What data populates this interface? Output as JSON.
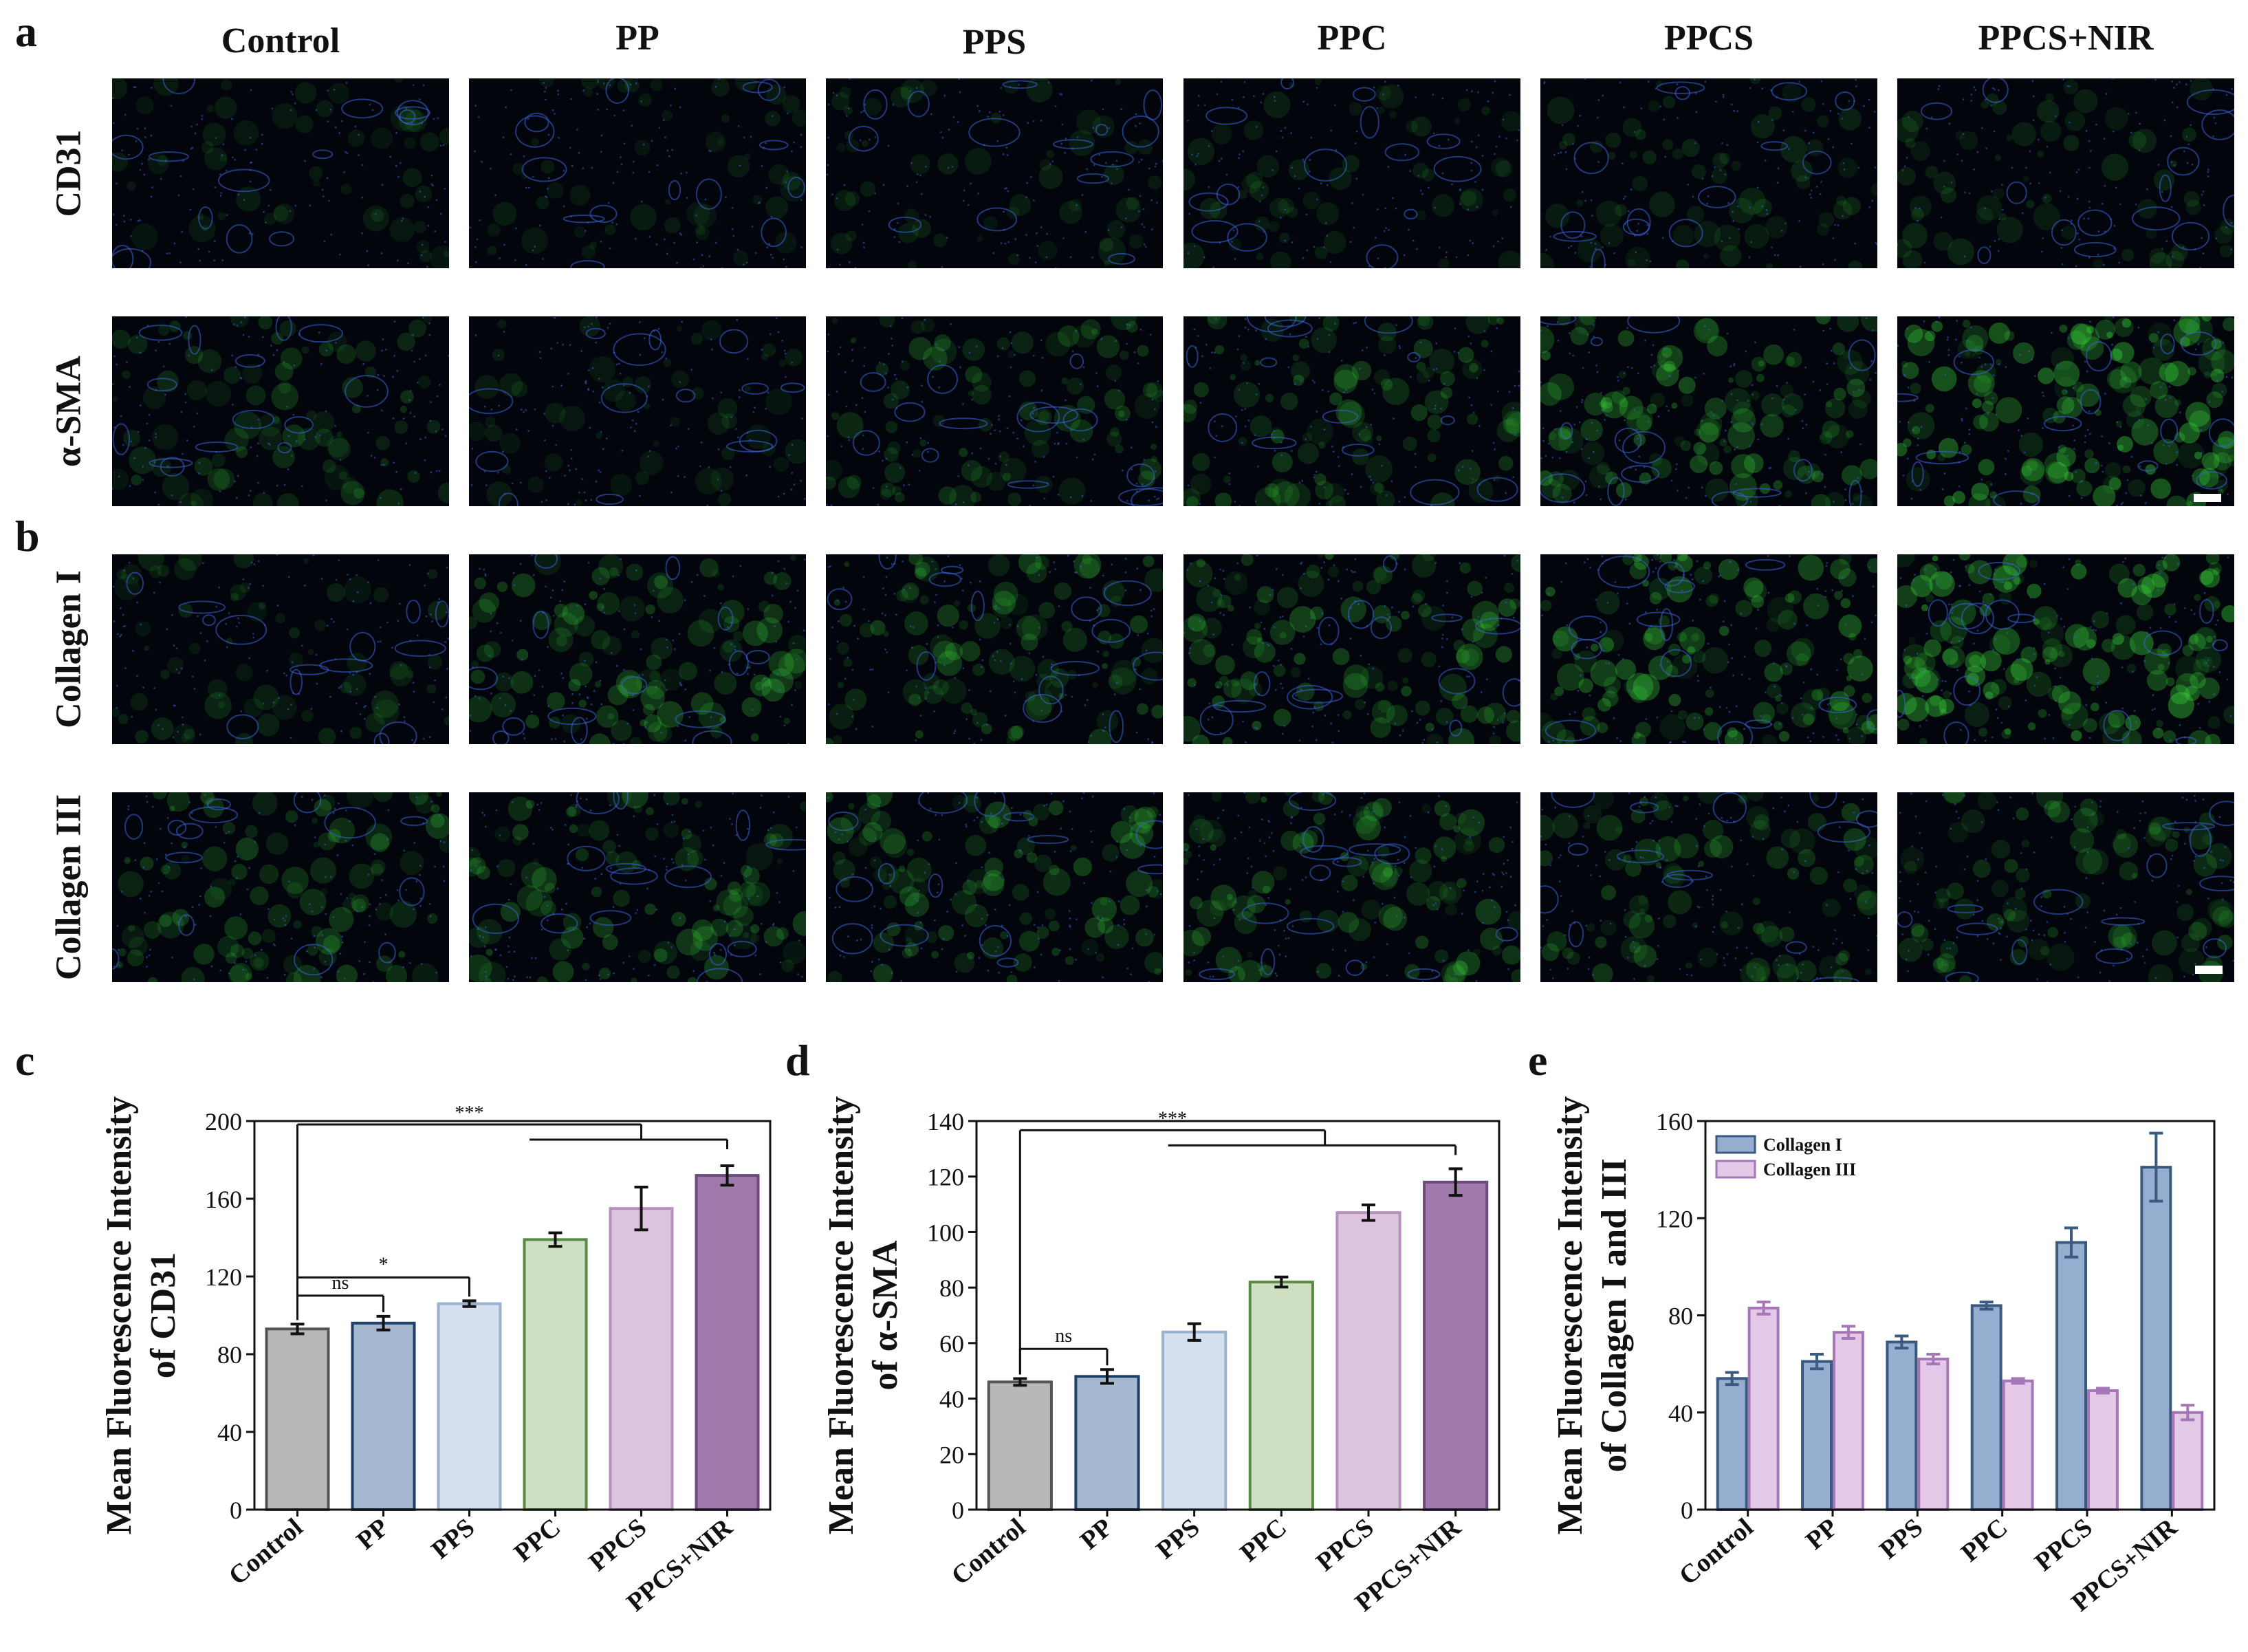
{
  "figure": {
    "panel_letters": [
      "a",
      "b",
      "c",
      "d",
      "e"
    ],
    "column_headers": [
      "Control",
      "PP",
      "PPS",
      "PPC",
      "PPCS",
      "PPCS+NIR"
    ],
    "row_labels": [
      "CD31",
      "α-SMA",
      "Collagen I",
      "Collagen III"
    ]
  },
  "colors": {
    "Control": "#b8b8b8",
    "PP": "#a6b8cf",
    "PPS": "#d4e0ee",
    "PPC": "#cfe0c2",
    "PPCS": "#dcc4de",
    "PPCS+NIR": "#a07aac",
    "collagen_i": "#95aed0",
    "collagen_iii": "#e4c8e8",
    "nuclei_stain": "#3a62d8",
    "marker_stain": "#39d43a"
  },
  "chart_data": [
    {
      "type": "bar",
      "panel": "c",
      "categories": [
        "Control",
        "PP",
        "PPS",
        "PPC",
        "PPCS",
        "PPCS+NIR"
      ],
      "values": [
        93,
        96,
        106,
        139,
        155,
        172
      ],
      "errors": [
        2.5,
        3.5,
        1.5,
        3.5,
        11,
        5
      ],
      "ylabel_line1": "Mean Fluorescence Intensity",
      "ylabel_line2": "of CD31",
      "ylim": [
        0,
        200
      ],
      "yticks": [
        0,
        40,
        80,
        120,
        160,
        200
      ],
      "annotations": [
        {
          "text": "ns",
          "from": "Control",
          "to": [
            "PP"
          ]
        },
        {
          "text": "*",
          "from": "Control",
          "to": [
            "PPS"
          ]
        },
        {
          "text": "***",
          "from": "Control",
          "to": [
            "PPC",
            "PPCS",
            "PPCS+NIR"
          ]
        }
      ]
    },
    {
      "type": "bar",
      "panel": "d",
      "categories": [
        "Control",
        "PP",
        "PPS",
        "PPC",
        "PPCS",
        "PPCS+NIR"
      ],
      "values": [
        46,
        48,
        64,
        82,
        107,
        118
      ],
      "errors": [
        1.2,
        2.5,
        3,
        1.8,
        2.8,
        4.8
      ],
      "ylabel_line1": "Mean Fluorescence Intensity",
      "ylabel_line2": "of α-SMA",
      "ylim": [
        0,
        140
      ],
      "yticks": [
        0,
        20,
        40,
        60,
        80,
        100,
        120,
        140
      ],
      "annotations": [
        {
          "text": "ns",
          "from": "Control",
          "to": [
            "PP"
          ]
        },
        {
          "text": "***",
          "from": "Control",
          "to": [
            "PPS",
            "PPC",
            "PPCS",
            "PPCS+NIR"
          ]
        }
      ]
    },
    {
      "type": "bar",
      "panel": "e",
      "categories": [
        "Control",
        "PP",
        "PPS",
        "PPC",
        "PPCS",
        "PPCS+NIR"
      ],
      "series": [
        {
          "name": "Collagen I",
          "values": [
            54,
            61,
            69,
            84,
            110,
            141
          ],
          "errors": [
            2.5,
            3,
            2.5,
            1.5,
            6,
            14
          ]
        },
        {
          "name": "Collagen III",
          "values": [
            83,
            73,
            62,
            53,
            49,
            40
          ],
          "errors": [
            2.5,
            2.5,
            2,
            1,
            1,
            3
          ]
        }
      ],
      "ylabel_line1": "Mean Fluorescence Intensity",
      "ylabel_line2": "of Collagen I and III",
      "ylim": [
        0,
        160
      ],
      "yticks": [
        0,
        40,
        80,
        120,
        160
      ],
      "legend_position": "top-left"
    }
  ]
}
